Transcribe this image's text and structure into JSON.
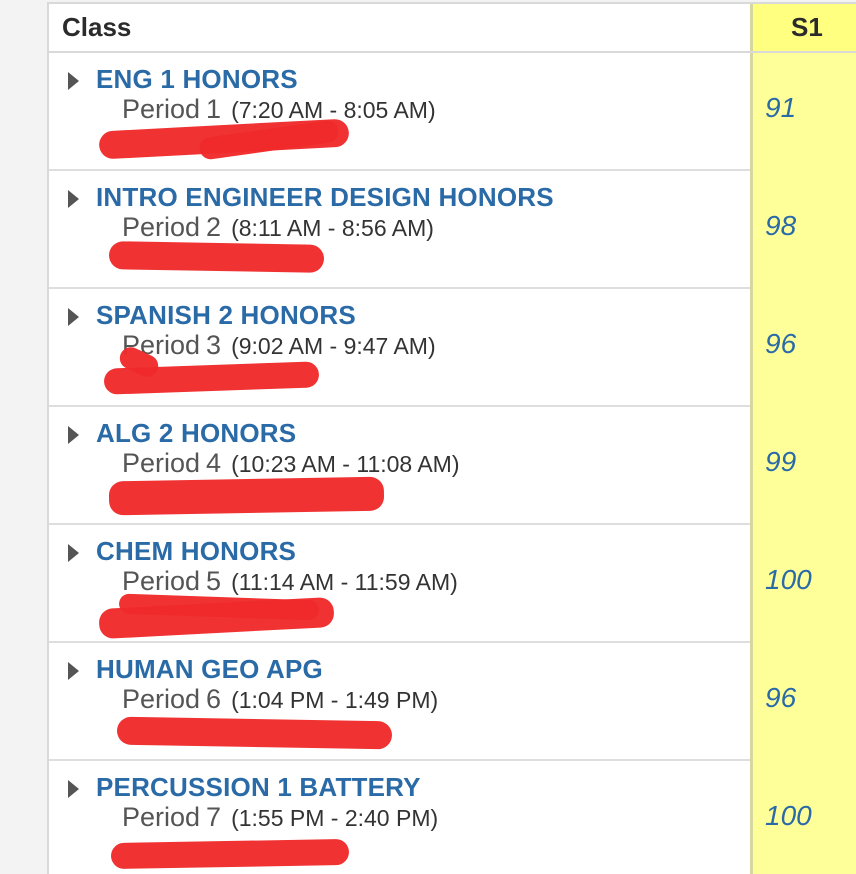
{
  "table": {
    "header": {
      "class_label": "Class",
      "term_label": "S1"
    },
    "rows": [
      {
        "course": "ENG 1 HONORS",
        "period_label": "Period",
        "period_number": "1",
        "time": "(7:20 AM - 8:05 AM)",
        "grade": "91"
      },
      {
        "course": "INTRO ENGINEER DESIGN HONORS",
        "period_label": "Period",
        "period_number": "2",
        "time": "(8:11 AM - 8:56 AM)",
        "grade": "98"
      },
      {
        "course": "SPANISH 2 HONORS",
        "period_label": "Period",
        "period_number": "3",
        "time": "(9:02 AM - 9:47 AM)",
        "grade": "96"
      },
      {
        "course": "ALG 2 HONORS",
        "period_label": "Period",
        "period_number": "4",
        "time": "(10:23 AM - 11:08 AM)",
        "grade": "99"
      },
      {
        "course": "CHEM HONORS",
        "period_label": "Period",
        "period_number": "5",
        "time": "(11:14 AM - 11:59 AM)",
        "grade": "100"
      },
      {
        "course": "HUMAN GEO APG",
        "period_label": "Period",
        "period_number": "6",
        "time": "(1:04 PM - 1:49 PM)",
        "grade": "96"
      },
      {
        "course": "PERCUSSION 1 BATTERY",
        "period_label": "Period",
        "period_number": "7",
        "time": "(1:55 PM - 2:40 PM)",
        "grade": "100"
      }
    ]
  },
  "colors": {
    "course_link": "#2a6aa6",
    "grade_column": "#ffff9a",
    "header_term": "#ffff80",
    "redaction": "#ef2a2a"
  },
  "icons": {
    "expand": "triangle-right-icon"
  }
}
